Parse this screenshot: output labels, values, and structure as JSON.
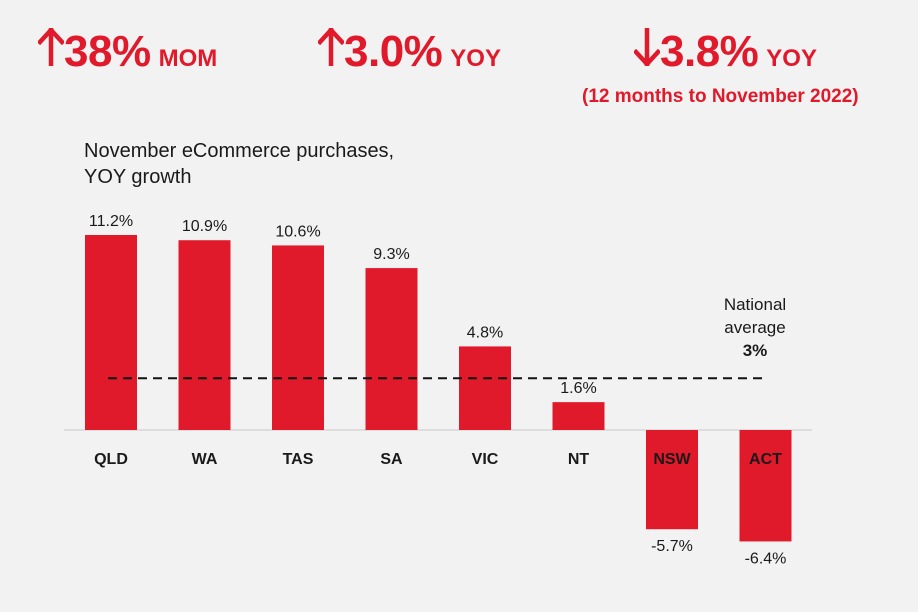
{
  "headline_stats": [
    {
      "direction": "up",
      "value": "38%",
      "unit": "MOM"
    },
    {
      "direction": "up",
      "value": "3.0%",
      "unit": "YOY"
    },
    {
      "direction": "down",
      "value": "3.8%",
      "unit": "YOY",
      "note": "(12 months to November 2022)"
    }
  ],
  "colors": {
    "accent": "#e0192b",
    "text": "#1a1a1a",
    "background": "#f2f2f2"
  },
  "chart_data": {
    "type": "bar",
    "title_line1": "November eCommerce purchases,",
    "title_line2": "YOY growth",
    "categories": [
      "QLD",
      "WA",
      "TAS",
      "SA",
      "VIC",
      "NT",
      "NSW",
      "ACT"
    ],
    "values": [
      11.2,
      10.9,
      10.6,
      9.3,
      4.8,
      1.6,
      -5.7,
      -6.4
    ],
    "value_labels": [
      "11.2%",
      "10.9%",
      "10.6%",
      "9.3%",
      "4.8%",
      "1.6%",
      "-5.7%",
      "-6.4%"
    ],
    "reference_line": {
      "value": 3,
      "label_line1": "National",
      "label_line2": "average",
      "value_label": "3%"
    },
    "xlabel": "",
    "ylabel": "",
    "ylim": [
      -6.4,
      11.2
    ]
  }
}
